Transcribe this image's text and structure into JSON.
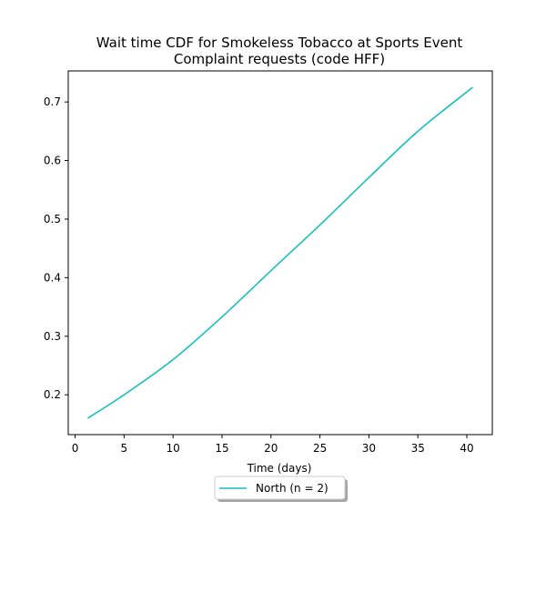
{
  "chart_data": {
    "type": "line",
    "title_lines": [
      "Wait time CDF for Smokeless Tobacco at Sports Event",
      "Complaint  requests (code HFF)"
    ],
    "xlabel": "Time (days)",
    "ylabel": "",
    "xlim": [
      -0.7,
      42.6
    ],
    "ylim": [
      0.132,
      0.753
    ],
    "xticks": [
      0,
      5,
      10,
      15,
      20,
      25,
      30,
      35,
      40
    ],
    "yticks": [
      0.2,
      0.3,
      0.4,
      0.5,
      0.6,
      0.7
    ],
    "xtick_labels": [
      "0",
      "5",
      "10",
      "15",
      "20",
      "25",
      "30",
      "35",
      "40"
    ],
    "ytick_labels": [
      "0.2",
      "0.3",
      "0.4",
      "0.5",
      "0.6",
      "0.7"
    ],
    "grid": false,
    "legend_position": "below plot, centered",
    "series": [
      {
        "name": "North (n = 2)",
        "color": "#17bfbf",
        "x": [
          1.3,
          5,
          10,
          15,
          20,
          25,
          30,
          35,
          40.6
        ],
        "y": [
          0.16,
          0.2,
          0.26,
          0.333,
          0.412,
          0.49,
          0.571,
          0.65,
          0.725
        ]
      }
    ]
  }
}
